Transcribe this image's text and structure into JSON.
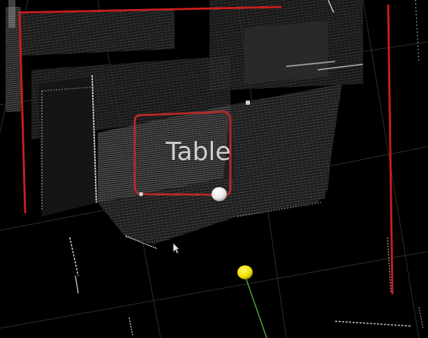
{
  "scene": {
    "annotation_label": "Table"
  },
  "colors": {
    "background": "#000000",
    "grid_line": "#2e2e2e",
    "boundary_red": "#c81e1e",
    "table_outline": "#b52a2a",
    "label_text": "#cfcfcf",
    "point_cloud_light": "#e6e6e6",
    "point_cloud_mid": "#9a9a9a",
    "point_cloud_dark": "#4a4a4a",
    "marker_white": "#f4f4f4",
    "marker_yellow": "#f2e000",
    "axis_green": "#4fae3a"
  },
  "icons": {
    "cursor": "mouse-cursor-icon"
  }
}
